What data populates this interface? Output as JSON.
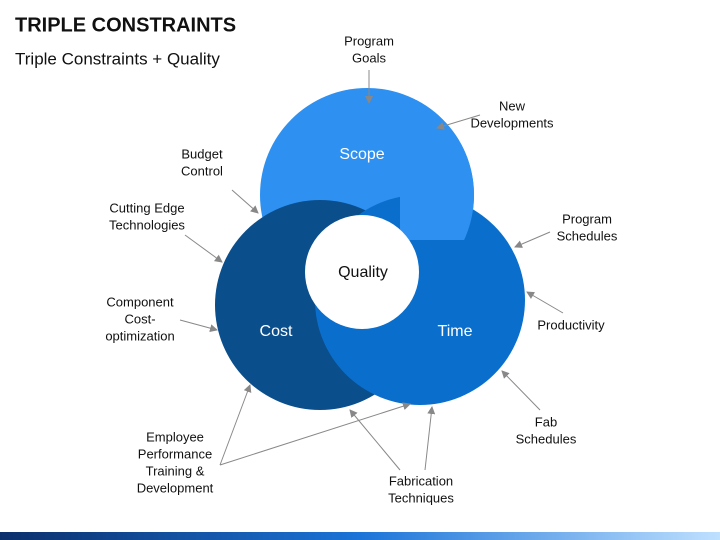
{
  "header": {
    "title": "TRIPLE CONSTRAINTS",
    "subtitle": "Triple Constraints + Quality"
  },
  "circles": {
    "scope": "Scope",
    "cost": "Cost",
    "time": "Time",
    "center": "Quality"
  },
  "annotations": [
    {
      "lines": [
        "Program",
        "Goals"
      ]
    },
    {
      "lines": [
        "New",
        "Developments"
      ]
    },
    {
      "lines": [
        "Budget",
        "Control"
      ]
    },
    {
      "lines": [
        "Cutting Edge",
        "Technologies"
      ]
    },
    {
      "lines": [
        "Program",
        "Schedules"
      ]
    },
    {
      "lines": [
        "Component",
        "Cost-",
        "optimization"
      ]
    },
    {
      "lines": [
        "Productivity"
      ]
    },
    {
      "lines": [
        "Fab",
        "Schedules"
      ]
    },
    {
      "lines": [
        "Employee",
        "Performance",
        "Training &",
        "Development"
      ]
    },
    {
      "lines": [
        "Fabrication",
        "Techniques"
      ]
    }
  ]
}
